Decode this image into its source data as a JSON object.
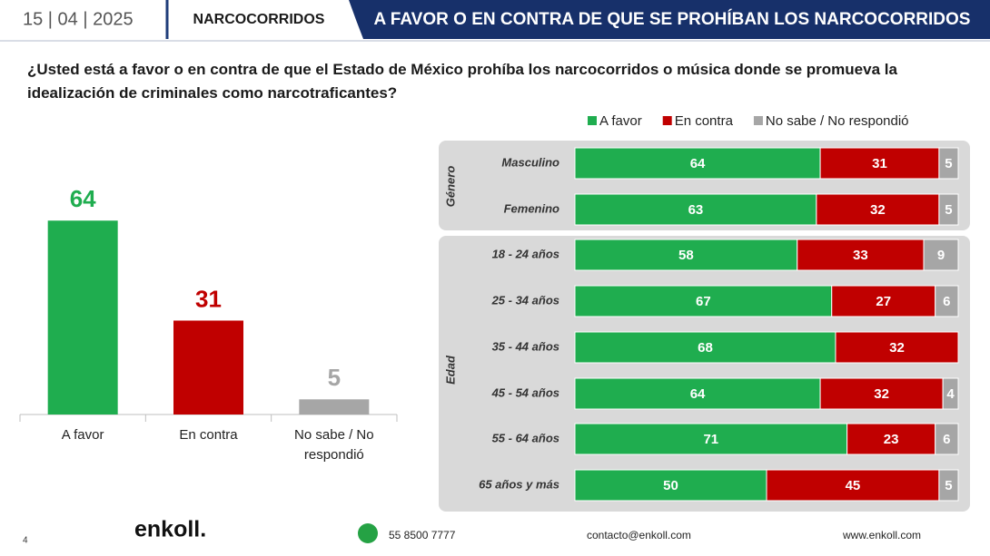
{
  "header": {
    "date": "15 | 04 | 2025",
    "section": "NARCOCORRIDOS",
    "title": "A FAVOR O EN CONTRA DE QUE SE PROHÍBAN LOS NARCOCORRIDOS"
  },
  "question": "¿Usted está a favor o en contra de que el Estado de México prohíba los narcocorridos o música donde se promueva la idealización de criminales como narcotraficantes?",
  "chart_data": [
    {
      "type": "bar",
      "categories": [
        "A favor",
        "En contra",
        "No sabe / No respondió"
      ],
      "values": [
        64,
        31,
        5
      ],
      "colors": [
        "#1fad4f",
        "#c00000",
        "#a6a6a6"
      ],
      "ylim": [
        0,
        100
      ]
    },
    {
      "type": "stacked_barh",
      "groups": [
        {
          "label": "Género",
          "categories": [
            "Masculino",
            "Femenino"
          ]
        },
        {
          "label": "Edad",
          "categories": [
            "18 - 24 años",
            "25 - 34 años",
            "35 - 44 años",
            "45 - 54 años",
            "55 - 64 años",
            "65  años y más"
          ]
        }
      ],
      "series": [
        {
          "name": "A favor",
          "color": "#1fad4f",
          "values": [
            64,
            63,
            58,
            67,
            68,
            64,
            71,
            50
          ]
        },
        {
          "name": "En contra",
          "color": "#c00000",
          "values": [
            31,
            32,
            33,
            27,
            32,
            32,
            23,
            45
          ]
        },
        {
          "name": "No sabe / No respondió",
          "color": "#a6a6a6",
          "values": [
            5,
            5,
            9,
            6,
            null,
            4,
            6,
            5
          ]
        }
      ],
      "xlim": [
        0,
        100
      ]
    }
  ],
  "footer": {
    "page": "4",
    "logo": "enkoll.",
    "phone": "55 8500 7777",
    "email": "contacto@enkoll.com",
    "web": "www.enkoll.com"
  }
}
